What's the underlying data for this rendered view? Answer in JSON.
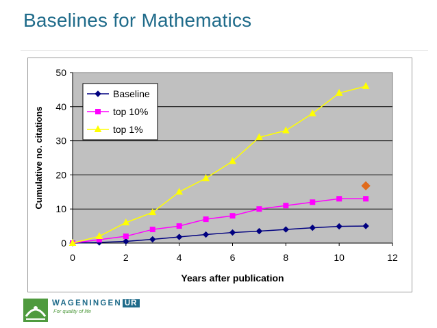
{
  "slide": {
    "title": "Baselines for Mathematics"
  },
  "logo": {
    "name": "WAGENINGEN",
    "suffix": "UR",
    "tagline": "For quality of life"
  },
  "colors": {
    "title": "#1f6b8a",
    "baseline": "#000080",
    "top10": "#ff00ff",
    "top1": "#ffff00",
    "marker": "#e06b1c",
    "plot_bg": "#c0c0c0"
  },
  "chart_data": {
    "type": "line",
    "title": "",
    "xlabel": "Years after publication",
    "ylabel": "Cumulative no. citations",
    "xlim": [
      0,
      12
    ],
    "ylim": [
      0,
      50
    ],
    "x_ticks": [
      0,
      2,
      4,
      6,
      8,
      10,
      12
    ],
    "y_ticks": [
      0,
      10,
      20,
      30,
      40,
      50
    ],
    "grid": "horizontal",
    "legend_position": "top-left",
    "x": [
      0,
      1,
      2,
      3,
      4,
      5,
      6,
      7,
      8,
      9,
      10,
      11
    ],
    "series": [
      {
        "name": "Baseline",
        "marker": "diamond",
        "color": "#000080",
        "values": [
          0,
          0.2,
          0.5,
          1.1,
          1.8,
          2.5,
          3.1,
          3.5,
          4.0,
          4.5,
          4.9,
          5.0
        ]
      },
      {
        "name": "top 10%",
        "marker": "square",
        "color": "#ff00ff",
        "values": [
          0,
          1,
          2,
          4,
          5,
          7,
          8,
          10,
          11,
          12,
          13,
          13
        ]
      },
      {
        "name": "top 1%",
        "marker": "triangle",
        "color": "#ffff00",
        "values": [
          0,
          2,
          6,
          9,
          15,
          19,
          24,
          31,
          33,
          38,
          44,
          46
        ]
      }
    ],
    "annotations": [
      {
        "type": "point",
        "marker": "diamond",
        "x": 11,
        "y": 16.8,
        "color": "#e06b1c"
      }
    ]
  }
}
